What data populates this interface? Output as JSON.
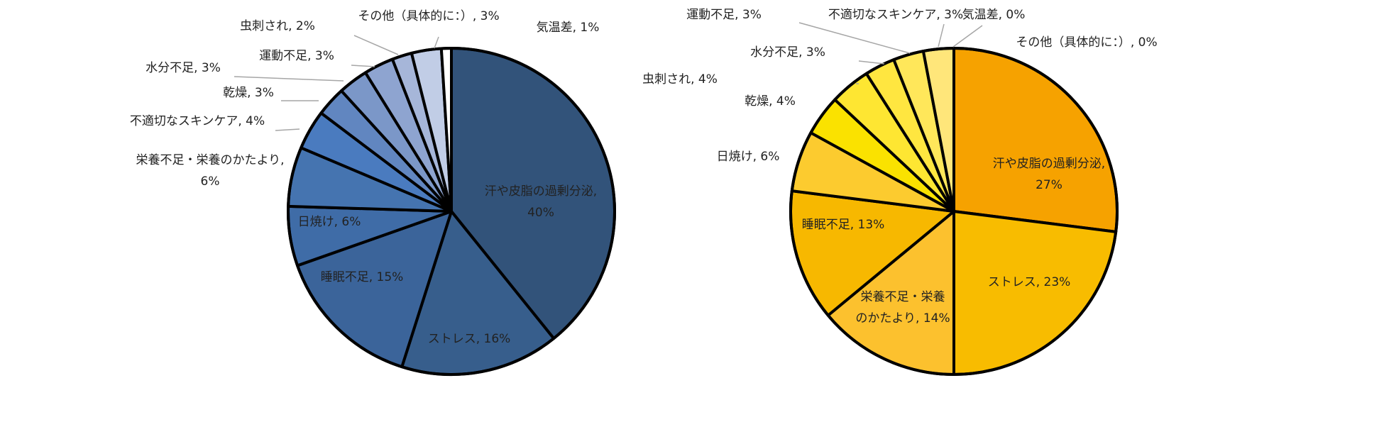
{
  "chart_data": [
    {
      "type": "pie",
      "title": "",
      "labels": [
        "汗や皮脂の過剰分泌",
        "ストレス",
        "睡眠不足",
        "日焼け",
        "栄養不足・栄養のかたより",
        "不適切なスキンケア",
        "乾燥",
        "水分不足",
        "運動不足",
        "虫刺され",
        "その他（具体的に：）",
        "気温差"
      ],
      "values": [
        40,
        16,
        15,
        6,
        6,
        4,
        3,
        3,
        3,
        2,
        3,
        1
      ],
      "colors": [
        "#32537a",
        "#375e8c",
        "#3b649a",
        "#3f6ca7",
        "#4574b0",
        "#4a7bbf",
        "#6186c0",
        "#7b97c8",
        "#8ea4d0",
        "#a6b6d9",
        "#c1cde6",
        "#ffffff"
      ],
      "data_labels": [
        [
          "汗や皮脂の過剰分泌,",
          "40%"
        ],
        [
          "ストレス, 16%"
        ],
        [
          "睡眠不足, 15%"
        ],
        [
          "日焼け, 6%"
        ],
        [
          "栄養不足・栄養のかたより,",
          "6%"
        ],
        [
          "不適切なスキンケア, 4%"
        ],
        [
          "乾燥, 3%"
        ],
        [
          "水分不足, 3%"
        ],
        [
          "運動不足, 3%"
        ],
        [
          "虫刺され, 2%"
        ],
        [
          "その他（具体的に：）, 3%"
        ],
        [
          "気温差, 1%"
        ]
      ]
    },
    {
      "type": "pie",
      "title": "",
      "labels": [
        "汗や皮脂の過剰分泌",
        "ストレス",
        "栄養不足・栄養のかたより",
        "睡眠不足",
        "日焼け",
        "乾燥",
        "虫刺され",
        "水分不足",
        "運動不足",
        "不適切なスキンケア",
        "気温差",
        "その他（具体的に：）"
      ],
      "values": [
        27,
        23,
        14,
        13,
        6,
        4,
        4,
        3,
        3,
        3,
        0,
        0
      ],
      "colors": [
        "#f6a200",
        "#f8bc00",
        "#fcc12e",
        "#f7b800",
        "#fccb2f",
        "#fae200",
        "#fee632",
        "#ffe640",
        "#ffe75a",
        "#ffe67a",
        "#ffef9f",
        "#ffffff"
      ],
      "data_labels": [
        [
          "汗や皮脂の過剰分泌,",
          "27%"
        ],
        [
          "ストレス, 23%"
        ],
        [
          "栄養不足・栄養",
          "のかたより, 14%"
        ],
        [
          "睡眠不足, 13%"
        ],
        [
          "日焼け, 6%"
        ],
        [
          "乾燥, 4%"
        ],
        [
          "虫刺され, 4%"
        ],
        [
          "水分不足, 3%"
        ],
        [
          "運動不足, 3%"
        ],
        [
          "不適切なスキンケア, 3%"
        ],
        [
          "気温差, 0%"
        ],
        [
          "その他（具体的に：）, 0%"
        ]
      ]
    }
  ]
}
